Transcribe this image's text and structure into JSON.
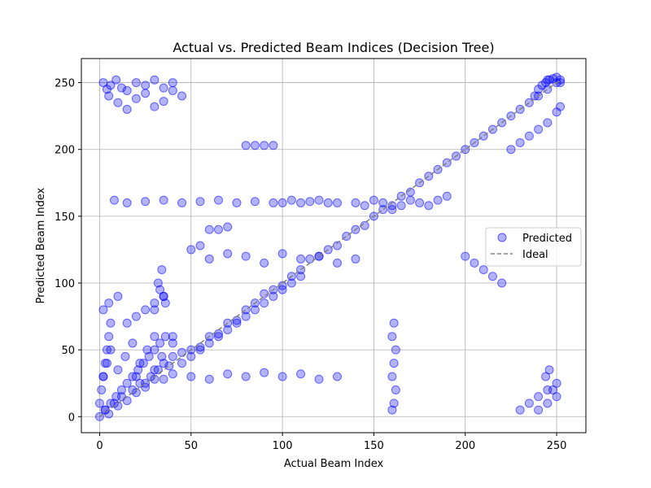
{
  "chart_data": {
    "type": "scatter",
    "title": "Actual vs. Predicted Beam Indices (Decision Tree)",
    "xlabel": "Actual Beam Index",
    "ylabel": "Predicted Beam Index",
    "xlim": [
      -10,
      266
    ],
    "ylim": [
      -12,
      268
    ],
    "xticks": [
      0,
      50,
      100,
      150,
      200,
      250
    ],
    "yticks": [
      0,
      50,
      100,
      150,
      200,
      250
    ],
    "grid": true,
    "legend": {
      "placement": "center-right",
      "entries": [
        "Predicted",
        "Ideal"
      ]
    },
    "colors": {
      "points": "#0000ff",
      "ideal": "#808080"
    },
    "series": [
      {
        "name": "Predicted",
        "kind": "scatter",
        "x": [
          0,
          3,
          5,
          8,
          10,
          12,
          15,
          18,
          20,
          22,
          25,
          28,
          30,
          32,
          35,
          38,
          40,
          45,
          50,
          55,
          60,
          65,
          70,
          75,
          80,
          85,
          90,
          95,
          100,
          105,
          110,
          115,
          120,
          125,
          130,
          135,
          140,
          145,
          150,
          155,
          160,
          165,
          170,
          175,
          180,
          185,
          190,
          195,
          200,
          205,
          210,
          215,
          220,
          225,
          230,
          235,
          240,
          245,
          250,
          252,
          2,
          4,
          6,
          9,
          12,
          15,
          20,
          25,
          30,
          35,
          40,
          5,
          10,
          15,
          20,
          25,
          30,
          35,
          40,
          45,
          8,
          15,
          25,
          35,
          45,
          55,
          65,
          75,
          85,
          95,
          105,
          115,
          125,
          20,
          25,
          30,
          35,
          40,
          50,
          60,
          70,
          80,
          90,
          100,
          110,
          120,
          130,
          60,
          70,
          80,
          90,
          100,
          110,
          120,
          130,
          140,
          140,
          145,
          150,
          155,
          160,
          165,
          170,
          175,
          180,
          185,
          190,
          225,
          230,
          235,
          240,
          245,
          250,
          252,
          2,
          5,
          10,
          15,
          20,
          25,
          30,
          35,
          40,
          230,
          235,
          240,
          245,
          250,
          2,
          4,
          6,
          10,
          14,
          18,
          22,
          26,
          30,
          34,
          40,
          3,
          6,
          9,
          12,
          15,
          18,
          21,
          24,
          27,
          30,
          33,
          36,
          45,
          50,
          55,
          60,
          65,
          70,
          75,
          80,
          85,
          90,
          95,
          100,
          105,
          110,
          160,
          161,
          162,
          160,
          161,
          162,
          160,
          161,
          240,
          245,
          250,
          248,
          244,
          246,
          30,
          35,
          32,
          34,
          33,
          36,
          80,
          85,
          90,
          95,
          60,
          65,
          70,
          50,
          55,
          200,
          205,
          210,
          215,
          220,
          100,
          110,
          120,
          130,
          240,
          242,
          244,
          246,
          248,
          250,
          252,
          245,
          238,
          0,
          1,
          2,
          3,
          4,
          5,
          6
        ],
        "y": [
          0,
          5,
          2,
          10,
          8,
          15,
          12,
          20,
          18,
          25,
          22,
          30,
          28,
          35,
          40,
          38,
          45,
          48,
          50,
          52,
          60,
          62,
          70,
          72,
          80,
          85,
          92,
          95,
          98,
          105,
          110,
          118,
          120,
          125,
          128,
          135,
          140,
          143,
          150,
          155,
          158,
          165,
          168,
          175,
          180,
          185,
          190,
          195,
          200,
          205,
          210,
          215,
          220,
          225,
          230,
          235,
          240,
          245,
          250,
          252,
          250,
          245,
          248,
          252,
          246,
          244,
          250,
          248,
          252,
          246,
          250,
          240,
          235,
          230,
          238,
          242,
          232,
          236,
          244,
          240,
          162,
          160,
          161,
          162,
          160,
          161,
          162,
          160,
          161,
          160,
          162,
          161,
          160,
          30,
          25,
          35,
          28,
          32,
          30,
          28,
          32,
          30,
          33,
          30,
          32,
          28,
          30,
          118,
          122,
          120,
          115,
          122,
          118,
          120,
          115,
          118,
          160,
          158,
          162,
          160,
          155,
          158,
          162,
          160,
          158,
          162,
          165,
          200,
          205,
          210,
          215,
          220,
          228,
          232,
          80,
          85,
          90,
          70,
          75,
          80,
          85,
          90,
          60,
          5,
          10,
          15,
          20,
          25,
          30,
          40,
          50,
          35,
          45,
          55,
          40,
          50,
          60,
          45,
          55,
          5,
          10,
          15,
          20,
          25,
          30,
          35,
          40,
          45,
          50,
          55,
          60,
          40,
          45,
          50,
          55,
          60,
          65,
          70,
          75,
          80,
          85,
          90,
          95,
          100,
          105,
          5,
          10,
          20,
          30,
          40,
          50,
          60,
          70,
          5,
          10,
          15,
          20,
          30,
          35,
          80,
          90,
          100,
          110,
          95,
          85,
          203,
          203,
          203,
          203,
          140,
          140,
          142,
          125,
          128,
          120,
          115,
          110,
          105,
          100,
          160,
          160,
          162,
          160,
          245,
          248,
          250,
          252,
          253,
          254,
          250,
          252,
          240,
          10,
          20,
          30,
          40,
          50,
          60,
          70
        ]
      },
      {
        "name": "Ideal",
        "kind": "line",
        "x": [
          0,
          252
        ],
        "y": [
          0,
          252
        ]
      }
    ]
  }
}
